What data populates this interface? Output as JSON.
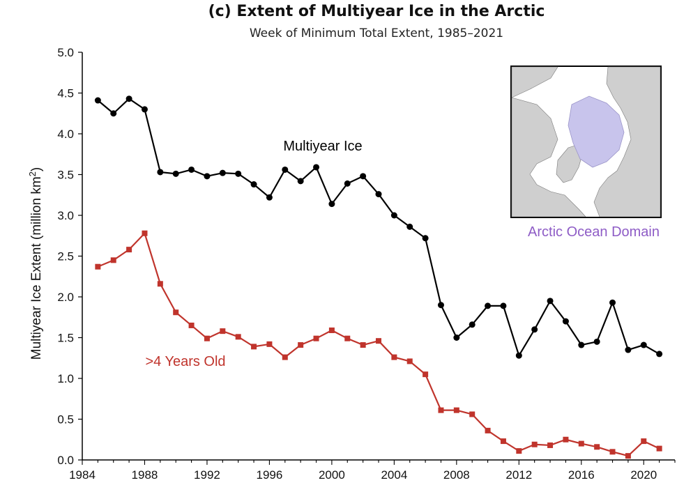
{
  "chart_data": {
    "type": "line",
    "title": "(c) Extent of Multiyear Ice in the Arctic",
    "subtitle": "Week of Minimum Total Extent, 1985–2021",
    "ylabel": "Multiyear Ice Extent (million km",
    "ylabel_sup": "2",
    "ylabel_tail": ")",
    "xlim": [
      1984,
      2022
    ],
    "ylim": [
      0,
      5
    ],
    "x_ticks": [
      1984,
      1988,
      1992,
      1996,
      2000,
      2004,
      2008,
      2012,
      2016,
      2020
    ],
    "x_tick_labels": [
      "1984",
      "1988",
      "1992",
      "1996",
      "2000",
      "2004",
      "2008",
      "2012",
      "2016",
      "2020"
    ],
    "y_ticks": [
      0,
      0.5,
      1,
      1.5,
      2,
      2.5,
      3,
      3.5,
      4,
      4.5,
      5
    ],
    "y_tick_labels": [
      "0.0",
      "0.5",
      "1.0",
      "1.5",
      "2.0",
      "2.5",
      "3.0",
      "3.5",
      "4.0",
      "4.5",
      "5.0"
    ],
    "grid": false,
    "x": [
      1985,
      1986,
      1987,
      1988,
      1989,
      1990,
      1991,
      1992,
      1993,
      1994,
      1995,
      1996,
      1997,
      1998,
      1999,
      2000,
      2001,
      2002,
      2003,
      2004,
      2005,
      2006,
      2007,
      2008,
      2009,
      2010,
      2011,
      2012,
      2013,
      2014,
      2015,
      2016,
      2017,
      2018,
      2019,
      2020,
      2021
    ],
    "series": [
      {
        "name": "Multiyear Ice",
        "color": "#000000",
        "marker": "circle",
        "values": [
          4.41,
          4.25,
          4.43,
          4.3,
          3.53,
          3.51,
          3.56,
          3.48,
          3.52,
          3.51,
          3.38,
          3.22,
          3.56,
          3.42,
          3.59,
          3.14,
          3.39,
          3.48,
          3.26,
          3.0,
          2.86,
          2.72,
          1.9,
          1.5,
          1.66,
          1.89,
          1.89,
          1.28,
          1.6,
          1.95,
          1.7,
          1.41,
          1.45,
          1.93,
          1.35,
          1.41,
          1.3
        ]
      },
      {
        "name": ">4 Years Old",
        "color": "#c0342c",
        "marker": "square",
        "values": [
          2.37,
          2.45,
          2.58,
          2.78,
          2.16,
          1.81,
          1.65,
          1.49,
          1.58,
          1.51,
          1.39,
          1.42,
          1.26,
          1.41,
          1.49,
          1.59,
          1.49,
          1.41,
          1.46,
          1.26,
          1.21,
          1.05,
          0.61,
          0.61,
          0.56,
          0.36,
          0.23,
          0.11,
          0.19,
          0.18,
          0.25,
          0.2,
          0.16,
          0.1,
          0.05,
          0.23,
          0.14
        ]
      }
    ],
    "inset": {
      "label": "Arctic Ocean Domain",
      "label_color": "#8e5cc6",
      "domain_color": "#c8c4ec",
      "land_color": "#cfcfcf",
      "ocean_color": "#ffffff"
    }
  }
}
